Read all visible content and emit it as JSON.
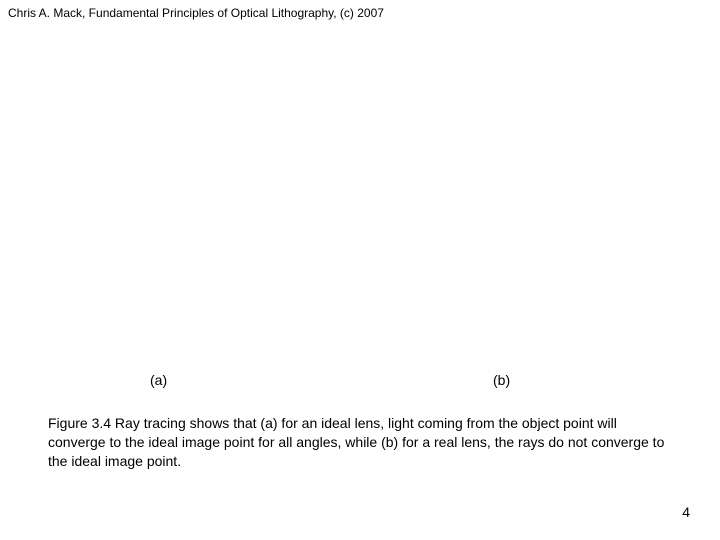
{
  "header": {
    "text": "Chris A. Mack, Fundamental Principles of Optical Lithography, (c) 2007"
  },
  "figure": {
    "label_a": "(a)",
    "label_b": "(b)",
    "caption": "Figure 3.4  Ray tracing shows that (a) for an ideal lens, light coming from the object point will converge to the ideal image point for all angles, while (b) for a real lens, the rays do not converge to the ideal image point."
  },
  "page": {
    "number": "4"
  },
  "colors": {
    "background": "#ffffff",
    "text": "#000000"
  },
  "typography": {
    "header_fontsize": 12,
    "body_fontsize": 14,
    "font_family": "Arial"
  }
}
